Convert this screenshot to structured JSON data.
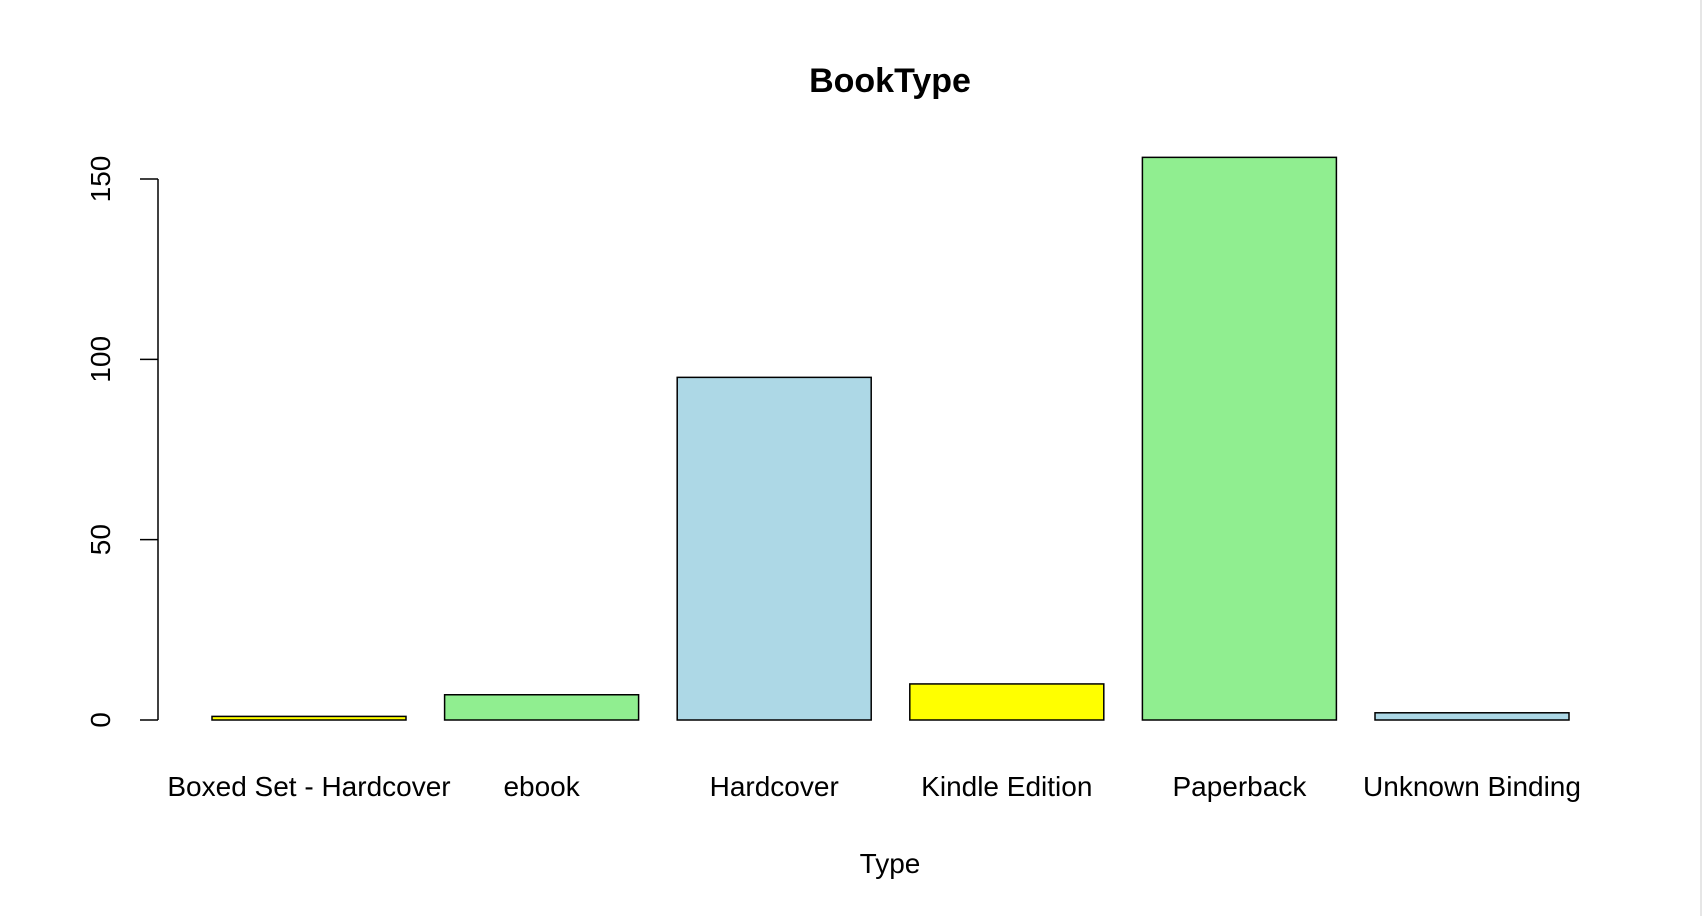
{
  "chart_data": {
    "type": "bar",
    "title": "BookType",
    "xlabel": "Type",
    "ylabel": "",
    "categories": [
      "Boxed Set - Hardcover",
      "ebook",
      "Hardcover",
      "Kindle Edition",
      "Paperback",
      "Unknown Binding"
    ],
    "values": [
      1,
      7,
      95,
      10,
      156,
      2
    ],
    "colors": [
      "#FFFF00",
      "#90EE90",
      "#ADD8E6",
      "#FFFF00",
      "#90EE90",
      "#ADD8E6"
    ],
    "yticks": [
      0,
      50,
      100,
      150
    ],
    "ylim": [
      0,
      156
    ],
    "grid": false,
    "legend": "none"
  }
}
